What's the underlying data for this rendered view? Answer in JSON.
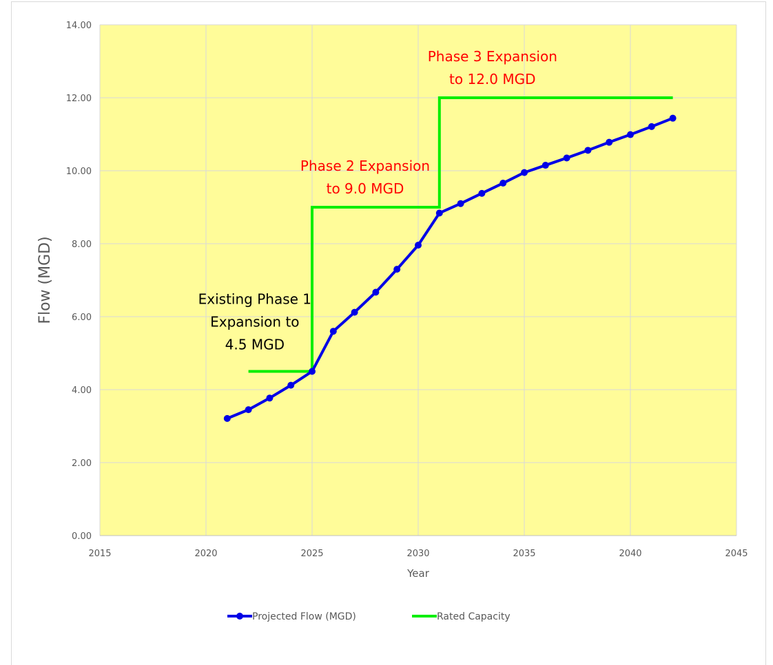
{
  "chart_data": {
    "type": "line",
    "title": "",
    "xlabel": "Year",
    "ylabel": "Flow (MGD)",
    "xlim": [
      2015,
      2045
    ],
    "ylim": [
      0,
      14
    ],
    "x_ticks": [
      "2015",
      "2020",
      "2025",
      "2030",
      "2035",
      "2040",
      "2045"
    ],
    "y_ticks": [
      "0.00",
      "2.00",
      "4.00",
      "6.00",
      "8.00",
      "10.00",
      "12.00",
      "14.00"
    ],
    "grid": true,
    "legend_position": "bottom",
    "plot_background": "#fffc99",
    "series": [
      {
        "name": "Projected Flow (MGD)",
        "color": "#0000e6",
        "marker": "circle",
        "x": [
          2021,
          2022,
          2023,
          2024,
          2025,
          2026,
          2027,
          2028,
          2029,
          2030,
          2031,
          2032,
          2033,
          2034,
          2035,
          2036,
          2037,
          2038,
          2039,
          2040,
          2041,
          2042
        ],
        "y": [
          3.21,
          3.45,
          3.77,
          4.12,
          4.5,
          5.6,
          6.12,
          6.67,
          7.3,
          7.96,
          8.84,
          9.1,
          9.38,
          9.66,
          9.95,
          10.15,
          10.35,
          10.56,
          10.78,
          10.99,
          11.21,
          11.44
        ]
      },
      {
        "name": "Rated Capacity",
        "color": "#00ee00",
        "marker": "none",
        "step": true,
        "x": [
          2022,
          2025,
          2025,
          2031,
          2031,
          2042
        ],
        "y": [
          4.5,
          4.5,
          9.0,
          9.0,
          12.0,
          12.0
        ]
      }
    ],
    "annotations": [
      {
        "lines": [
          "Existing Phase 1",
          "Expansion to",
          "4.5 MGD"
        ],
        "color": "#000000",
        "x": 2022.3,
        "y": 6.35
      },
      {
        "lines": [
          "Phase 2 Expansion",
          "to 9.0 MGD"
        ],
        "color": "#ff0000",
        "x": 2027.5,
        "y": 10.0
      },
      {
        "lines": [
          "Phase 3 Expansion",
          "to 12.0 MGD"
        ],
        "color": "#ff0000",
        "x": 2033.5,
        "y": 13.0
      }
    ]
  }
}
